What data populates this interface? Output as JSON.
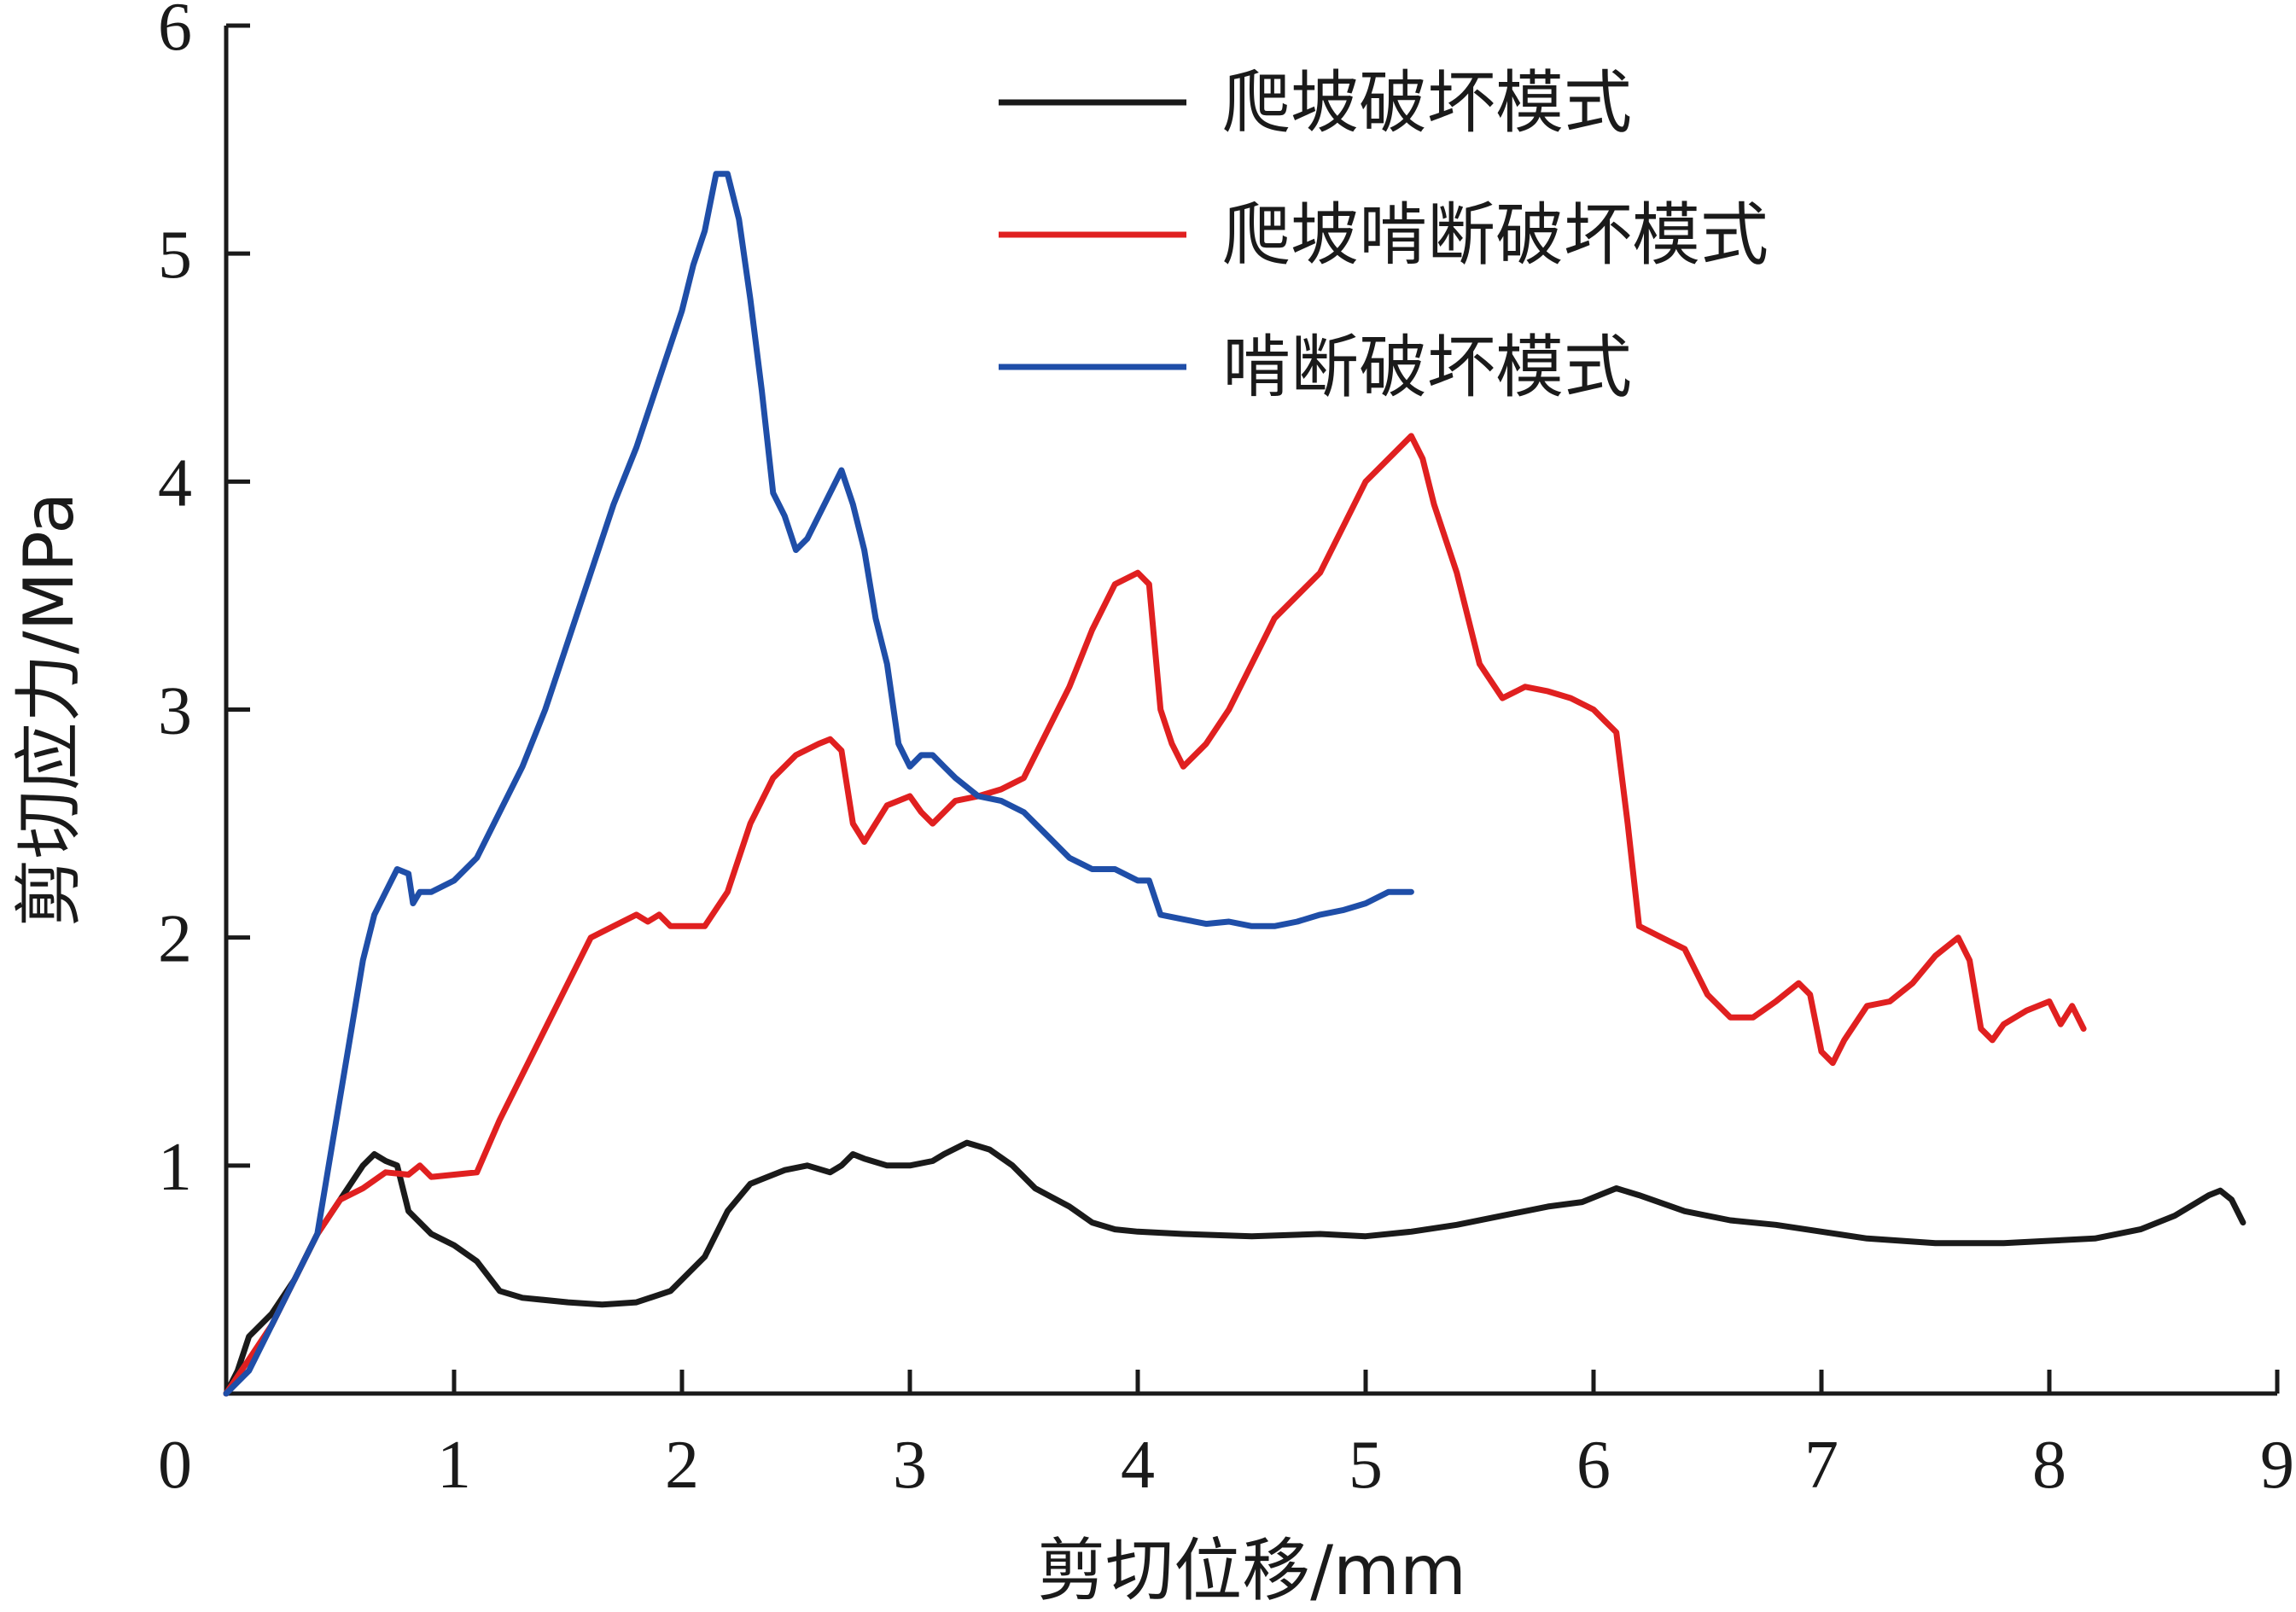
{
  "chart_data": {
    "type": "line",
    "title": "",
    "xlabel": "剪切位移/mm",
    "ylabel": "剪切应力/MPa",
    "xlim": [
      0,
      9
    ],
    "ylim": [
      0,
      6
    ],
    "xticks": [
      0,
      1,
      2,
      3,
      4,
      5,
      6,
      7,
      8,
      9
    ],
    "yticks": [
      1,
      2,
      3,
      4,
      5,
      6
    ],
    "x_tick_labels": [
      "0",
      "1",
      "2",
      "3",
      "4",
      "5",
      "6",
      "7",
      "8",
      "9"
    ],
    "y_tick_labels": [
      "1",
      "2",
      "3",
      "4",
      "5",
      "6"
    ],
    "grid": false,
    "legend_position": "top-right",
    "series": [
      {
        "name": "爬坡破坏模式",
        "color": "#1a1a1a",
        "points": [
          [
            0,
            0
          ],
          [
            0.05,
            0.1
          ],
          [
            0.1,
            0.25
          ],
          [
            0.2,
            0.35
          ],
          [
            0.3,
            0.5
          ],
          [
            0.4,
            0.7
          ],
          [
            0.5,
            0.85
          ],
          [
            0.6,
            1.0
          ],
          [
            0.65,
            1.05
          ],
          [
            0.7,
            1.02
          ],
          [
            0.75,
            1.0
          ],
          [
            0.8,
            0.8
          ],
          [
            0.9,
            0.7
          ],
          [
            1.0,
            0.65
          ],
          [
            1.1,
            0.58
          ],
          [
            1.2,
            0.45
          ],
          [
            1.3,
            0.42
          ],
          [
            1.5,
            0.4
          ],
          [
            1.65,
            0.39
          ],
          [
            1.8,
            0.4
          ],
          [
            1.95,
            0.45
          ],
          [
            2.1,
            0.6
          ],
          [
            2.2,
            0.8
          ],
          [
            2.3,
            0.92
          ],
          [
            2.45,
            0.98
          ],
          [
            2.55,
            1.0
          ],
          [
            2.65,
            0.97
          ],
          [
            2.7,
            1.0
          ],
          [
            2.75,
            1.05
          ],
          [
            2.8,
            1.03
          ],
          [
            2.9,
            1.0
          ],
          [
            3.0,
            1.0
          ],
          [
            3.1,
            1.02
          ],
          [
            3.15,
            1.05
          ],
          [
            3.25,
            1.1
          ],
          [
            3.35,
            1.07
          ],
          [
            3.45,
            1.0
          ],
          [
            3.55,
            0.9
          ],
          [
            3.7,
            0.82
          ],
          [
            3.8,
            0.75
          ],
          [
            3.9,
            0.72
          ],
          [
            4.0,
            0.71
          ],
          [
            4.2,
            0.7
          ],
          [
            4.5,
            0.69
          ],
          [
            4.8,
            0.7
          ],
          [
            5.0,
            0.69
          ],
          [
            5.2,
            0.71
          ],
          [
            5.4,
            0.74
          ],
          [
            5.6,
            0.78
          ],
          [
            5.8,
            0.82
          ],
          [
            5.95,
            0.84
          ],
          [
            6.05,
            0.88
          ],
          [
            6.1,
            0.9
          ],
          [
            6.2,
            0.87
          ],
          [
            6.4,
            0.8
          ],
          [
            6.6,
            0.76
          ],
          [
            6.8,
            0.74
          ],
          [
            7.0,
            0.71
          ],
          [
            7.2,
            0.68
          ],
          [
            7.5,
            0.66
          ],
          [
            7.8,
            0.66
          ],
          [
            8.0,
            0.67
          ],
          [
            8.2,
            0.68
          ],
          [
            8.4,
            0.72
          ],
          [
            8.55,
            0.78
          ],
          [
            8.7,
            0.87
          ],
          [
            8.75,
            0.89
          ],
          [
            8.8,
            0.85
          ],
          [
            8.85,
            0.75
          ]
        ]
      },
      {
        "name": "爬坡啃断破坏模式",
        "color": "#e02020",
        "points": [
          [
            0,
            0
          ],
          [
            0.1,
            0.15
          ],
          [
            0.2,
            0.3
          ],
          [
            0.3,
            0.5
          ],
          [
            0.4,
            0.7
          ],
          [
            0.5,
            0.85
          ],
          [
            0.6,
            0.9
          ],
          [
            0.7,
            0.97
          ],
          [
            0.8,
            0.96
          ],
          [
            0.85,
            1.0
          ],
          [
            0.9,
            0.95
          ],
          [
            1.0,
            0.96
          ],
          [
            1.1,
            0.97
          ],
          [
            1.2,
            1.2
          ],
          [
            1.3,
            1.4
          ],
          [
            1.4,
            1.6
          ],
          [
            1.5,
            1.8
          ],
          [
            1.6,
            2.0
          ],
          [
            1.7,
            2.05
          ],
          [
            1.8,
            2.1
          ],
          [
            1.85,
            2.07
          ],
          [
            1.9,
            2.1
          ],
          [
            1.95,
            2.05
          ],
          [
            2.0,
            2.05
          ],
          [
            2.1,
            2.05
          ],
          [
            2.2,
            2.2
          ],
          [
            2.3,
            2.5
          ],
          [
            2.4,
            2.7
          ],
          [
            2.5,
            2.8
          ],
          [
            2.6,
            2.85
          ],
          [
            2.65,
            2.87
          ],
          [
            2.7,
            2.82
          ],
          [
            2.75,
            2.5
          ],
          [
            2.8,
            2.42
          ],
          [
            2.85,
            2.5
          ],
          [
            2.9,
            2.58
          ],
          [
            3.0,
            2.62
          ],
          [
            3.05,
            2.55
          ],
          [
            3.1,
            2.5
          ],
          [
            3.2,
            2.6
          ],
          [
            3.3,
            2.62
          ],
          [
            3.4,
            2.65
          ],
          [
            3.5,
            2.7
          ],
          [
            3.6,
            2.9
          ],
          [
            3.7,
            3.1
          ],
          [
            3.8,
            3.35
          ],
          [
            3.9,
            3.55
          ],
          [
            4.0,
            3.6
          ],
          [
            4.05,
            3.55
          ],
          [
            4.1,
            3.0
          ],
          [
            4.15,
            2.85
          ],
          [
            4.2,
            2.75
          ],
          [
            4.3,
            2.85
          ],
          [
            4.4,
            3.0
          ],
          [
            4.5,
            3.2
          ],
          [
            4.6,
            3.4
          ],
          [
            4.7,
            3.5
          ],
          [
            4.8,
            3.6
          ],
          [
            4.9,
            3.8
          ],
          [
            5.0,
            4.0
          ],
          [
            5.1,
            4.1
          ],
          [
            5.2,
            4.2
          ],
          [
            5.25,
            4.1
          ],
          [
            5.3,
            3.9
          ],
          [
            5.4,
            3.6
          ],
          [
            5.5,
            3.2
          ],
          [
            5.6,
            3.05
          ],
          [
            5.7,
            3.1
          ],
          [
            5.8,
            3.08
          ],
          [
            5.9,
            3.05
          ],
          [
            6.0,
            3.0
          ],
          [
            6.05,
            2.95
          ],
          [
            6.1,
            2.9
          ],
          [
            6.15,
            2.5
          ],
          [
            6.2,
            2.05
          ],
          [
            6.3,
            2.0
          ],
          [
            6.4,
            1.95
          ],
          [
            6.5,
            1.75
          ],
          [
            6.6,
            1.65
          ],
          [
            6.7,
            1.65
          ],
          [
            6.8,
            1.72
          ],
          [
            6.9,
            1.8
          ],
          [
            6.95,
            1.75
          ],
          [
            7.0,
            1.5
          ],
          [
            7.05,
            1.45
          ],
          [
            7.1,
            1.55
          ],
          [
            7.2,
            1.7
          ],
          [
            7.3,
            1.72
          ],
          [
            7.4,
            1.8
          ],
          [
            7.5,
            1.92
          ],
          [
            7.6,
            2.0
          ],
          [
            7.65,
            1.9
          ],
          [
            7.7,
            1.6
          ],
          [
            7.75,
            1.55
          ],
          [
            7.8,
            1.62
          ],
          [
            7.9,
            1.68
          ],
          [
            8.0,
            1.72
          ],
          [
            8.05,
            1.62
          ],
          [
            8.1,
            1.7
          ],
          [
            8.15,
            1.6
          ]
        ]
      },
      {
        "name": "啃断破坏模式",
        "color": "#1f4ea8",
        "points": [
          [
            0,
            0
          ],
          [
            0.1,
            0.1
          ],
          [
            0.2,
            0.3
          ],
          [
            0.3,
            0.5
          ],
          [
            0.4,
            0.7
          ],
          [
            0.45,
            1.0
          ],
          [
            0.5,
            1.3
          ],
          [
            0.55,
            1.6
          ],
          [
            0.6,
            1.9
          ],
          [
            0.65,
            2.1
          ],
          [
            0.7,
            2.2
          ],
          [
            0.75,
            2.3
          ],
          [
            0.8,
            2.28
          ],
          [
            0.82,
            2.15
          ],
          [
            0.85,
            2.2
          ],
          [
            0.9,
            2.2
          ],
          [
            1.0,
            2.25
          ],
          [
            1.1,
            2.35
          ],
          [
            1.2,
            2.55
          ],
          [
            1.3,
            2.75
          ],
          [
            1.4,
            3.0
          ],
          [
            1.5,
            3.3
          ],
          [
            1.6,
            3.6
          ],
          [
            1.7,
            3.9
          ],
          [
            1.8,
            4.15
          ],
          [
            1.9,
            4.45
          ],
          [
            2.0,
            4.75
          ],
          [
            2.05,
            4.95
          ],
          [
            2.1,
            5.1
          ],
          [
            2.15,
            5.35
          ],
          [
            2.2,
            5.35
          ],
          [
            2.25,
            5.15
          ],
          [
            2.3,
            4.8
          ],
          [
            2.35,
            4.4
          ],
          [
            2.4,
            3.95
          ],
          [
            2.45,
            3.85
          ],
          [
            2.5,
            3.7
          ],
          [
            2.55,
            3.75
          ],
          [
            2.6,
            3.85
          ],
          [
            2.7,
            4.05
          ],
          [
            2.75,
            3.9
          ],
          [
            2.8,
            3.7
          ],
          [
            2.85,
            3.4
          ],
          [
            2.9,
            3.2
          ],
          [
            2.95,
            2.85
          ],
          [
            3.0,
            2.75
          ],
          [
            3.05,
            2.8
          ],
          [
            3.1,
            2.8
          ],
          [
            3.15,
            2.75
          ],
          [
            3.2,
            2.7
          ],
          [
            3.3,
            2.62
          ],
          [
            3.4,
            2.6
          ],
          [
            3.5,
            2.55
          ],
          [
            3.6,
            2.45
          ],
          [
            3.7,
            2.35
          ],
          [
            3.8,
            2.3
          ],
          [
            3.9,
            2.3
          ],
          [
            4.0,
            2.25
          ],
          [
            4.05,
            2.25
          ],
          [
            4.1,
            2.1
          ],
          [
            4.2,
            2.08
          ],
          [
            4.3,
            2.06
          ],
          [
            4.4,
            2.07
          ],
          [
            4.5,
            2.05
          ],
          [
            4.6,
            2.05
          ],
          [
            4.7,
            2.07
          ],
          [
            4.8,
            2.1
          ],
          [
            4.9,
            2.12
          ],
          [
            5.0,
            2.15
          ],
          [
            5.1,
            2.2
          ],
          [
            5.2,
            2.2
          ]
        ]
      }
    ]
  }
}
